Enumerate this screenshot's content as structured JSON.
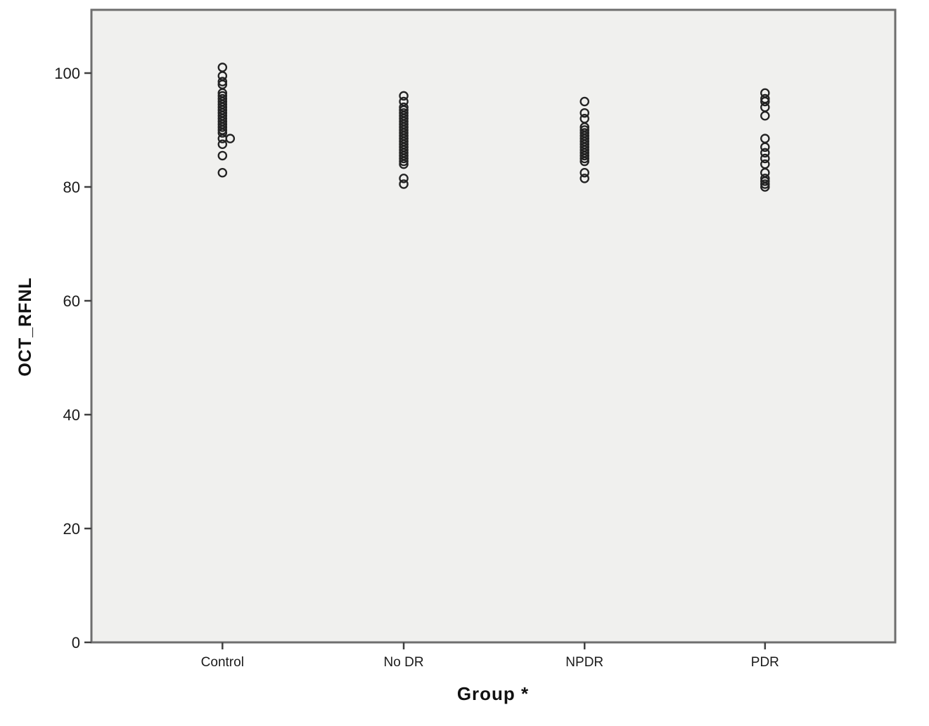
{
  "chart_data": {
    "type": "scatter",
    "title": "",
    "xlabel": "Group *",
    "ylabel": "OCT_RFNL",
    "categories": [
      "Control",
      "No DR",
      "NPDR",
      "PDR"
    ],
    "y_ticks": [
      0,
      20,
      40,
      60,
      80,
      100
    ],
    "ylim": [
      0,
      100
    ],
    "grid": false,
    "legend": "none",
    "marker": "open-circle",
    "colors": {
      "plot_bg": "#f0f0ee",
      "frame": "#6e6e6e",
      "tick_line": "#404040",
      "tick_text": "#1a1a1a",
      "marker_stroke": "#222222"
    },
    "series": [
      {
        "category": "Control",
        "values": [
          101,
          99.5,
          98.5,
          98,
          96.5,
          96,
          95.5,
          95,
          94.5,
          94,
          93.5,
          93,
          92.5,
          92,
          91.5,
          91,
          90.5,
          90,
          89.5,
          88.5,
          {
            "v": 88.5,
            "dx": 11
          },
          87.5,
          85.5,
          82.5
        ]
      },
      {
        "category": "No DR",
        "values": [
          96,
          95,
          94,
          93.5,
          93,
          92.5,
          92,
          91.5,
          91,
          90.5,
          90,
          89.5,
          89,
          88.5,
          88,
          87.5,
          87,
          86.5,
          86,
          85.5,
          85,
          84.5,
          84,
          81.5,
          80.5
        ]
      },
      {
        "category": "NPDR",
        "values": [
          95,
          93,
          92,
          90.5,
          90,
          89.5,
          89,
          88.5,
          88,
          87.5,
          87,
          86.5,
          86,
          85.5,
          85,
          84.5,
          82.5,
          81.5
        ]
      },
      {
        "category": "PDR",
        "values": [
          96.5,
          95.5,
          95,
          94,
          92.5,
          88.5,
          87,
          86,
          85,
          84,
          82.5,
          81.5,
          81,
          80.5,
          80
        ]
      }
    ]
  }
}
